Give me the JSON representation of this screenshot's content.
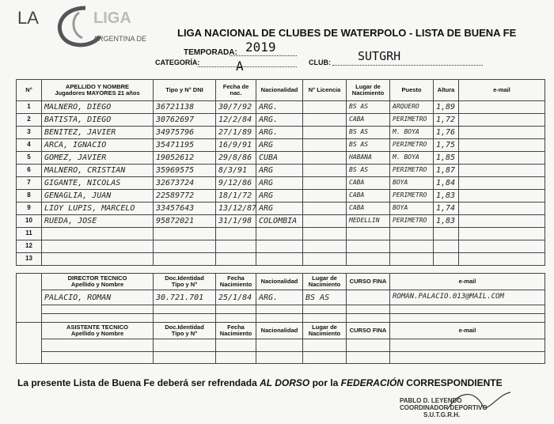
{
  "logo": {
    "prefix": "LA",
    "name": "LIGA",
    "subtitle": "ARGENTINA DE"
  },
  "header": {
    "title": "LIGA NACIONAL DE CLUBES DE WATERPOLO - LISTA DE BUENA FE",
    "season_label": "TEMPORADA:",
    "season": "2019",
    "category_label": "CATEGORÍA:",
    "category": "A",
    "club_label": "CLUB:",
    "club": "SUTGRH"
  },
  "players": {
    "columns": [
      "N°",
      "APELLIDO Y NOMBRE\nJugadores MAYORES 21 años",
      "Tipo y N° DNI",
      "Fecha de\nnac.",
      "Nacionalidad",
      "N° Licencia",
      "Lugar de\nNacimiento",
      "Puesto",
      "Altura",
      "e-mail"
    ],
    "rows": [
      {
        "n": "1",
        "name": "MALNERO, DIEGO",
        "dni": "36721138",
        "birth": "30/7/92",
        "nationality": "ARG.",
        "birthplace": "BS AS",
        "position": "ARQUERO",
        "height": "1,89"
      },
      {
        "n": "2",
        "name": "BATISTA, DIEGO",
        "dni": "30762697",
        "birth": "12/2/84",
        "nationality": "ARG.",
        "birthplace": "CABA",
        "position": "PERIMETRO",
        "height": "1,72"
      },
      {
        "n": "3",
        "name": "BENITEZ, JAVIER",
        "dni": "34975796",
        "birth": "27/1/89",
        "nationality": "ARG.",
        "birthplace": "BS AS",
        "position": "M. BOYA",
        "height": "1,76"
      },
      {
        "n": "4",
        "name": "ARCA, IGNACIO",
        "dni": "35471195",
        "birth": "16/9/91",
        "nationality": "ARG",
        "birthplace": "BS AS",
        "position": "PERIMETRO",
        "height": "1,75"
      },
      {
        "n": "5",
        "name": "GOMEZ, JAVIER",
        "dni": "19052612",
        "birth": "29/8/86",
        "nationality": "CUBA",
        "birthplace": "HABANA",
        "position": "M. BOYA",
        "height": "1,85"
      },
      {
        "n": "6",
        "name": "MALNERO, CRISTIAN",
        "dni": "35969575",
        "birth": "8/3/91",
        "nationality": "ARG",
        "birthplace": "BS AS",
        "position": "PERIMETRO",
        "height": "1,87"
      },
      {
        "n": "7",
        "name": "GIGANTE, NICOLAS",
        "dni": "32673724",
        "birth": "9/12/86",
        "nationality": "ARG",
        "birthplace": "CABA",
        "position": "BOYA",
        "height": "1,84"
      },
      {
        "n": "8",
        "name": "GENAGLIA, JUAN",
        "dni": "22589772",
        "birth": "18/1/72",
        "nationality": "ARG",
        "birthplace": "CABA",
        "position": "PERIMETRO",
        "height": "1,83"
      },
      {
        "n": "9",
        "name": "LIOY LUPIS, MARCELO",
        "dni": "33457643",
        "birth": "13/12/87",
        "nationality": "ARG",
        "birthplace": "CABA",
        "position": "BOYA",
        "height": "1,74"
      },
      {
        "n": "10",
        "name": "RUEDA, JOSE",
        "dni": "95872021",
        "birth": "31/1/98",
        "nationality": "COLOMBIA",
        "birthplace": "MEDELLIN",
        "position": "PERIMETRO",
        "height": "1,83"
      },
      {
        "n": "11"
      },
      {
        "n": "12"
      },
      {
        "n": "13"
      }
    ]
  },
  "director": {
    "columns": [
      "DIRECTOR TECNICO\nApellido y Nombre",
      "Doc.Identidad\nTipo y N°",
      "Fecha\nNacimiento",
      "Nacionalidad",
      "Lugar de\nNacimiento",
      "CURSO FINA",
      "e-mail"
    ],
    "rows": [
      {
        "name": "PALACIO, ROMAN",
        "doc": "30.721.701",
        "birth": "25/1/84",
        "nationality": "ARG.",
        "birthplace": "BS AS",
        "email": "ROMAN.PALACIO.013@MAIL.COM"
      }
    ]
  },
  "assistant": {
    "columns": [
      "ASISTENTE TECNICO\nApellido y Nombre",
      "Doc.Identidad\nTipo y N°",
      "Fecha\nNacimiento",
      "Nacionalidad",
      "Lugar de\nNacimiento",
      "CURSO FINA",
      "e-mail"
    ],
    "rows": []
  },
  "footer": {
    "text1": "La presente Lista de Buena Fe deberá ser refrendada",
    "emphasis1": "AL DORSO",
    "text2": "por la",
    "emphasis2": "FEDERACIÓN",
    "text3": "CORRESPONDIENTE"
  },
  "stamp": {
    "lines": [
      "PABLO D. LEYENDO",
      "COORDINADOR DEPORTIVO",
      "S.U.T.G.R.H."
    ]
  }
}
